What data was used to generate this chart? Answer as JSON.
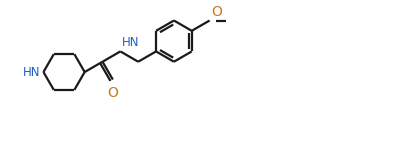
{
  "background": "#ffffff",
  "line_color": "#1a1a1a",
  "nh_color": "#1a5fc8",
  "o_color": "#c87820",
  "line_width": 1.6,
  "figsize": [
    4.0,
    1.5
  ],
  "dpi": 100,
  "xlim": [
    0.0,
    10.0
  ],
  "ylim": [
    0.0,
    3.75
  ]
}
